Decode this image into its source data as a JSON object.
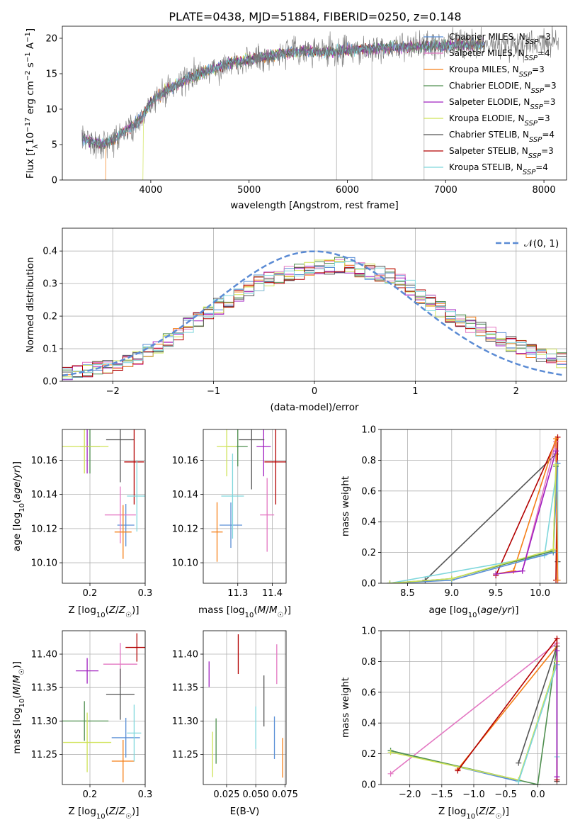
{
  "title": "PLATE=0438, MJD=51884, FIBERID=0250, z=0.148",
  "colors": {
    "chabrier_miles": "#5a8fd6",
    "salpeter_miles": "#e377c2",
    "kroupa_miles": "#f57f17",
    "chabrier_elodie": "#4f8f4f",
    "salpeter_elodie": "#a020c0",
    "kroupa_elodie": "#cfe357",
    "chabrier_stelib": "#555555",
    "salpeter_stelib": "#b30000",
    "kroupa_stelib": "#7fd7dc",
    "data": "#777777",
    "normal": "#5b8bd4"
  },
  "chart_data": [
    {
      "type": "line",
      "name": "spectrum",
      "xlabel": "wavelength [Angstrom, rest frame]",
      "ylabel": "Flux [f_λ 10^-17 erg cm^-2 s^-1 A^-1]",
      "xlim": [
        3100,
        8230
      ],
      "ylim": [
        0,
        21.7
      ],
      "xticks": [
        "4000",
        "5000",
        "6000",
        "7000",
        "8000"
      ],
      "yticks": [
        "0",
        "5",
        "10",
        "15",
        "20"
      ],
      "legend": "top-right",
      "legend_entries": [
        "Chabrier MILES, N_SSP=3",
        "Salpeter MILES, N_SSP=4",
        "Kroupa MILES, N_SSP=3",
        "Chabrier ELODIE, N_SSP=3",
        "Salpeter ELODIE, N_SSP=3",
        "Kroupa ELODIE, N_SSP=3",
        "Chabrier STELIB, N_SSP=4",
        "Salpeter STELIB, N_SSP=3",
        "Kroupa STELIB, N_SSP=4"
      ],
      "continuum": {
        "x": [
          3300,
          3400,
          3500,
          3600,
          3700,
          3800,
          3900,
          4000,
          4200,
          4400,
          4600,
          4800,
          5000,
          5200,
          5400,
          5600,
          5800,
          6000,
          6200,
          6400,
          6600,
          6800,
          7000,
          7200,
          7400,
          7600,
          7800,
          8000,
          8200
        ],
        "y": [
          5.8,
          5.4,
          5.0,
          5.5,
          6.5,
          7.5,
          8.5,
          11.0,
          13.0,
          14.5,
          15.5,
          16.5,
          17.0,
          17.5,
          18.0,
          18.2,
          18.0,
          18.3,
          18.5,
          18.7,
          18.8,
          18.9,
          19.0,
          19.1,
          19.1,
          19.2,
          19.3,
          19.4,
          19.5
        ]
      }
    },
    {
      "type": "bar",
      "name": "residual-histogram",
      "xlabel": "(data-model)/error",
      "ylabel": "Normed distribution",
      "xlim": [
        -2.5,
        2.5
      ],
      "ylim": [
        0,
        0.47
      ],
      "xticks": [
        "−2",
        "−1",
        "0",
        "1",
        "2"
      ],
      "yticks": [
        "0.0",
        "0.1",
        "0.2",
        "0.3",
        "0.4"
      ],
      "legend": "top-right",
      "legend_entries": [
        "𝒩(0, 1)"
      ],
      "x": [
        -2.5,
        -2.3,
        -2.1,
        -1.9,
        -1.7,
        -1.5,
        -1.3,
        -1.1,
        -0.9,
        -0.7,
        -0.5,
        -0.3,
        -0.1,
        0.1,
        0.3,
        0.5,
        0.7,
        0.9,
        1.1,
        1.3,
        1.5,
        1.7,
        1.9,
        2.1,
        2.3,
        2.5
      ],
      "density": [
        0.02,
        0.03,
        0.045,
        0.06,
        0.08,
        0.12,
        0.16,
        0.2,
        0.24,
        0.28,
        0.31,
        0.33,
        0.34,
        0.35,
        0.36,
        0.34,
        0.33,
        0.3,
        0.25,
        0.21,
        0.18,
        0.15,
        0.12,
        0.1,
        0.08,
        0.06
      ]
    },
    {
      "type": "scatter",
      "name": "age-vs-Z",
      "xlabel": "Z [log10(Z/Z☉)]",
      "ylabel": "age  [log10(age/yr)]",
      "xlim": [
        0.15,
        0.3
      ],
      "ylim": [
        10.088,
        10.178
      ],
      "xticks": [
        "0.2",
        "0.3"
      ],
      "yticks": [
        "10.10",
        "10.12",
        "10.14",
        "10.16"
      ],
      "points": [
        {
          "model": "chabrier_miles",
          "x": 0.265,
          "y": 10.122
        },
        {
          "model": "salpeter_miles",
          "x": 0.255,
          "y": 10.128
        },
        {
          "model": "kroupa_miles",
          "x": 0.26,
          "y": 10.118
        },
        {
          "model": "chabrier_elodie",
          "x": 0.2,
          "y": 10.168
        },
        {
          "model": "salpeter_elodie",
          "x": 0.195,
          "y": 10.168
        },
        {
          "model": "kroupa_elodie",
          "x": 0.19,
          "y": 10.168
        },
        {
          "model": "chabrier_stelib",
          "x": 0.255,
          "y": 10.172
        },
        {
          "model": "salpeter_stelib",
          "x": 0.28,
          "y": 10.159
        },
        {
          "model": "kroupa_stelib",
          "x": 0.285,
          "y": 10.139
        }
      ]
    },
    {
      "type": "scatter",
      "name": "age-vs-mass",
      "xlabel": "mass [log10(M/M☉)]",
      "ylabel": "",
      "xlim": [
        11.2,
        11.44
      ],
      "ylim": [
        10.088,
        10.178
      ],
      "xticks": [
        "11.3",
        "11.4"
      ],
      "yticks": [
        "10.10",
        "10.12",
        "10.14",
        "10.16"
      ],
      "points": [
        {
          "model": "chabrier_miles",
          "x": 11.28,
          "y": 10.122
        },
        {
          "model": "salpeter_miles",
          "x": 11.385,
          "y": 10.128
        },
        {
          "model": "kroupa_miles",
          "x": 11.24,
          "y": 10.118
        },
        {
          "model": "chabrier_elodie",
          "x": 11.3,
          "y": 10.168
        },
        {
          "model": "salpeter_elodie",
          "x": 11.375,
          "y": 10.168
        },
        {
          "model": "kroupa_elodie",
          "x": 11.268,
          "y": 10.168
        },
        {
          "model": "chabrier_stelib",
          "x": 11.34,
          "y": 10.172
        },
        {
          "model": "salpeter_stelib",
          "x": 11.41,
          "y": 10.159
        },
        {
          "model": "kroupa_stelib",
          "x": 11.285,
          "y": 10.139
        }
      ]
    },
    {
      "type": "line",
      "name": "mass-weight-vs-age",
      "xlabel": "age  [log10(age/yr)]",
      "ylabel": "mass weight",
      "xlim": [
        8.2,
        10.3
      ],
      "ylim": [
        0,
        1
      ],
      "xticks": [
        "8.5",
        "9.0",
        "9.5",
        "10.0"
      ],
      "yticks": [
        "0.0",
        "0.2",
        "0.4",
        "0.6",
        "0.8",
        "1.0"
      ],
      "series": [
        {
          "model": "chabrier_stelib",
          "x": [
            8.7,
            10.18,
            10.2
          ],
          "y": [
            0.02,
            0.84,
            0.14
          ]
        },
        {
          "model": "salpeter_stelib",
          "x": [
            9.5,
            10.2,
            10.18
          ],
          "y": [
            0.05,
            0.95,
            0.02
          ]
        },
        {
          "model": "kroupa_stelib",
          "x": [
            8.3,
            10.05,
            10.2,
            10.2
          ],
          "y": [
            0.0,
            0.18,
            0.78,
            0.02
          ]
        },
        {
          "model": "salpeter_miles",
          "x": [
            9.8,
            10.18,
            10.2
          ],
          "y": [
            0.08,
            0.92,
            0.0
          ]
        },
        {
          "model": "kroupa_miles",
          "x": [
            9.5,
            9.7,
            10.18,
            10.2
          ],
          "y": [
            0.06,
            0.08,
            0.94,
            0.02
          ]
        },
        {
          "model": "chabrier_miles",
          "x": [
            8.3,
            9.0,
            10.15,
            10.2
          ],
          "y": [
            0.0,
            0.02,
            0.2,
            0.78
          ]
        },
        {
          "model": "chabrier_elodie",
          "x": [
            8.3,
            9.0,
            10.15,
            10.18
          ],
          "y": [
            0.0,
            0.03,
            0.21,
            0.76
          ]
        },
        {
          "model": "kroupa_elodie",
          "x": [
            8.3,
            9.0,
            10.15,
            10.18
          ],
          "y": [
            0.0,
            0.03,
            0.22,
            0.77
          ]
        },
        {
          "model": "salpeter_elodie",
          "x": [
            9.5,
            9.8,
            10.18
          ],
          "y": [
            0.06,
            0.08,
            0.86
          ]
        }
      ]
    },
    {
      "type": "scatter",
      "name": "mass-vs-Z",
      "xlabel": "Z [log10(Z/Z☉)]",
      "ylabel": "mass [log10(M/M☉)]",
      "xlim": [
        0.15,
        0.3
      ],
      "ylim": [
        11.205,
        11.435
      ],
      "xticks": [
        "0.2",
        "0.3"
      ],
      "yticks": [
        "11.25",
        "11.30",
        "11.35",
        "11.40"
      ],
      "points": [
        {
          "model": "chabrier_miles",
          "x": 0.265,
          "y": 11.275
        },
        {
          "model": "salpeter_miles",
          "x": 0.255,
          "y": 11.385
        },
        {
          "model": "kroupa_miles",
          "x": 0.26,
          "y": 11.24
        },
        {
          "model": "chabrier_elodie",
          "x": 0.19,
          "y": 11.3
        },
        {
          "model": "salpeter_elodie",
          "x": 0.195,
          "y": 11.375
        },
        {
          "model": "kroupa_elodie",
          "x": 0.195,
          "y": 11.268
        },
        {
          "model": "chabrier_stelib",
          "x": 0.255,
          "y": 11.34
        },
        {
          "model": "salpeter_stelib",
          "x": 0.285,
          "y": 11.41
        },
        {
          "model": "kroupa_stelib",
          "x": 0.28,
          "y": 11.282
        }
      ]
    },
    {
      "type": "scatter",
      "name": "mass-vs-ebv",
      "xlabel": "E(B-V)",
      "ylabel": "",
      "xlim": [
        0.005,
        0.076
      ],
      "ylim": [
        11.205,
        11.435
      ],
      "xticks": [
        "0.025",
        "0.050",
        "0.075"
      ],
      "yticks": [
        "11.25",
        "11.30",
        "11.35",
        "11.40"
      ],
      "points": [
        {
          "model": "chabrier_miles",
          "x": 0.066,
          "y": 11.275
        },
        {
          "model": "salpeter_miles",
          "x": 0.068,
          "y": 11.385
        },
        {
          "model": "kroupa_miles",
          "x": 0.073,
          "y": 11.245
        },
        {
          "model": "chabrier_elodie",
          "x": 0.016,
          "y": 11.27
        },
        {
          "model": "salpeter_elodie",
          "x": 0.01,
          "y": 11.37
        },
        {
          "model": "kroupa_elodie",
          "x": 0.013,
          "y": 11.25
        },
        {
          "model": "chabrier_stelib",
          "x": 0.057,
          "y": 11.33
        },
        {
          "model": "salpeter_stelib",
          "x": 0.035,
          "y": 11.4
        },
        {
          "model": "kroupa_stelib",
          "x": 0.05,
          "y": 11.29
        }
      ]
    },
    {
      "type": "line",
      "name": "mass-weight-vs-Z",
      "xlabel": "Z [log10(Z/Z☉)]",
      "ylabel": "mass weight",
      "xlim": [
        -2.45,
        0.45
      ],
      "ylim": [
        0,
        1
      ],
      "xticks": [
        "−2.0",
        "−1.5",
        "−1.0",
        "−0.5",
        "0.0"
      ],
      "yticks": [
        "0.0",
        "0.2",
        "0.4",
        "0.6",
        "0.8",
        "1.0"
      ],
      "series": [
        {
          "model": "salpeter_miles",
          "x": [
            -2.3,
            0.3
          ],
          "y": [
            0.07,
            0.92
          ]
        },
        {
          "model": "kroupa_miles",
          "x": [
            -1.25,
            0.3
          ],
          "y": [
            0.1,
            0.9
          ]
        },
        {
          "model": "chabrier_miles",
          "x": [
            -2.3,
            -0.3,
            0.3
          ],
          "y": [
            0.22,
            0.02,
            0.78
          ]
        },
        {
          "model": "chabrier_elodie",
          "x": [
            -2.3,
            0.0,
            0.3
          ],
          "y": [
            0.22,
            0.0,
            0.9
          ]
        },
        {
          "model": "kroupa_elodie",
          "x": [
            -2.3,
            -0.3,
            0.3
          ],
          "y": [
            0.21,
            0.03,
            0.8
          ]
        },
        {
          "model": "chabrier_stelib",
          "x": [
            -0.3,
            0.3,
            0.3
          ],
          "y": [
            0.14,
            0.9,
            0.02
          ]
        },
        {
          "model": "salpeter_stelib",
          "x": [
            -1.25,
            0.3,
            0.3
          ],
          "y": [
            0.09,
            0.95,
            0.03
          ]
        },
        {
          "model": "kroupa_stelib",
          "x": [
            -0.3,
            0.3,
            0.3
          ],
          "y": [
            0.02,
            0.78,
            0.18
          ]
        },
        {
          "model": "salpeter_elodie",
          "x": [
            0.3,
            0.3
          ],
          "y": [
            0.87,
            0.05
          ]
        }
      ]
    }
  ]
}
